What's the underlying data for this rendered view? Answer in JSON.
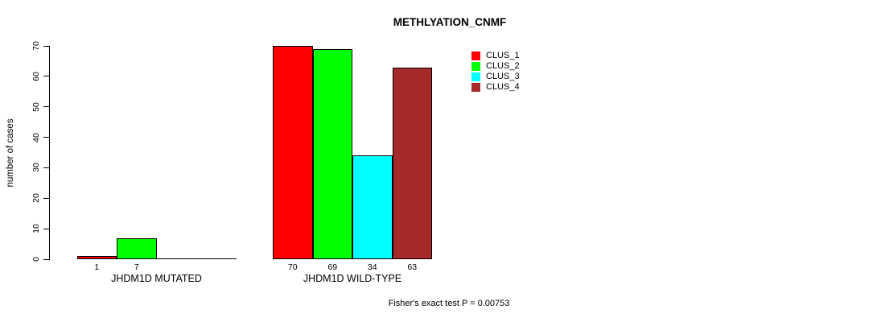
{
  "chart_data": {
    "type": "bar",
    "title": "METHLYATION_CNMF",
    "xlabel": "",
    "ylabel": "number of cases",
    "ylim": [
      0,
      70
    ],
    "y_ticks": [
      0,
      10,
      20,
      30,
      40,
      50,
      60,
      70
    ],
    "grid": false,
    "legend_position": "top-right",
    "bar_value_labels_shown": true,
    "categories": [
      "JHDM1D MUTATED",
      "JHDM1D WILD-TYPE"
    ],
    "series": [
      {
        "name": "CLUS_1",
        "color": "#FF0000",
        "values": [
          1,
          70
        ]
      },
      {
        "name": "CLUS_2",
        "color": "#00FF00",
        "values": [
          7,
          69
        ]
      },
      {
        "name": "CLUS_3",
        "color": "#00FFFF",
        "values": [
          0,
          34
        ]
      },
      {
        "name": "CLUS_4",
        "color": "#A52A2A",
        "values": [
          0,
          63
        ]
      }
    ],
    "annotation": "Fisher's exact test P = 0.00753"
  }
}
